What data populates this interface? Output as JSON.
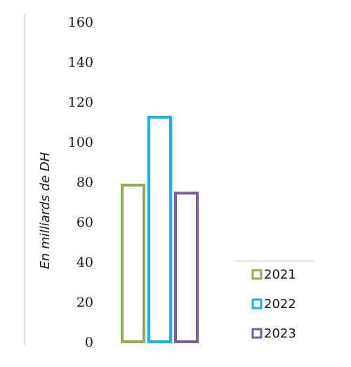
{
  "chart_data": {
    "type": "bar",
    "categories": [
      ""
    ],
    "series": [
      {
        "name": "2021",
        "values": [
          79
        ],
        "color": "#8fb04c"
      },
      {
        "name": "2022",
        "values": [
          113
        ],
        "color": "#14b4ee"
      },
      {
        "name": "2023",
        "values": [
          75
        ],
        "color": "#7a5d9c"
      }
    ],
    "ylabel": "En milliards de DH",
    "ylim": [
      0,
      160
    ],
    "yticks": [
      "0",
      "20",
      "40",
      "60",
      "80",
      "100",
      "120",
      "140",
      "160"
    ],
    "legend_position": "bottom-right",
    "grid": false,
    "bar_style": "outlined"
  }
}
